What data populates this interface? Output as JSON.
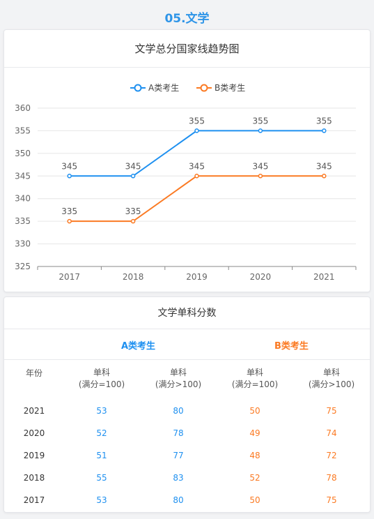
{
  "section_title": "05.文学",
  "chart_data": {
    "type": "line",
    "title": "文学总分国家线趋势图",
    "categories": [
      "2017",
      "2018",
      "2019",
      "2020",
      "2021"
    ],
    "series": [
      {
        "name": "A类考生",
        "values": [
          345,
          345,
          355,
          355,
          355
        ],
        "color": "#1e90f0"
      },
      {
        "name": "B类考生",
        "values": [
          335,
          335,
          345,
          345,
          345
        ],
        "color": "#fb7a23"
      }
    ],
    "y_ticks": [
      325,
      330,
      335,
      340,
      345,
      350,
      355,
      360
    ],
    "ylim": [
      325,
      360
    ],
    "grid": true,
    "legend": "top-center",
    "data_labels": true
  },
  "table": {
    "title": "文学单科分数",
    "group_a": "A类考生",
    "group_b": "B类考生",
    "year_header": "年份",
    "col_headers": [
      {
        "line1": "单科",
        "line2": "(满分=100)"
      },
      {
        "line1": "单科",
        "line2": "(满分>100)"
      },
      {
        "line1": "单科",
        "line2": "(满分=100)"
      },
      {
        "line1": "单科",
        "line2": "(满分>100)"
      }
    ],
    "rows": [
      {
        "year": "2021",
        "a1": "53",
        "a2": "80",
        "b1": "50",
        "b2": "75"
      },
      {
        "year": "2020",
        "a1": "52",
        "a2": "78",
        "b1": "49",
        "b2": "74"
      },
      {
        "year": "2019",
        "a1": "51",
        "a2": "77",
        "b1": "48",
        "b2": "72"
      },
      {
        "year": "2018",
        "a1": "55",
        "a2": "83",
        "b1": "52",
        "b2": "78"
      },
      {
        "year": "2017",
        "a1": "53",
        "a2": "80",
        "b1": "50",
        "b2": "75"
      }
    ]
  }
}
